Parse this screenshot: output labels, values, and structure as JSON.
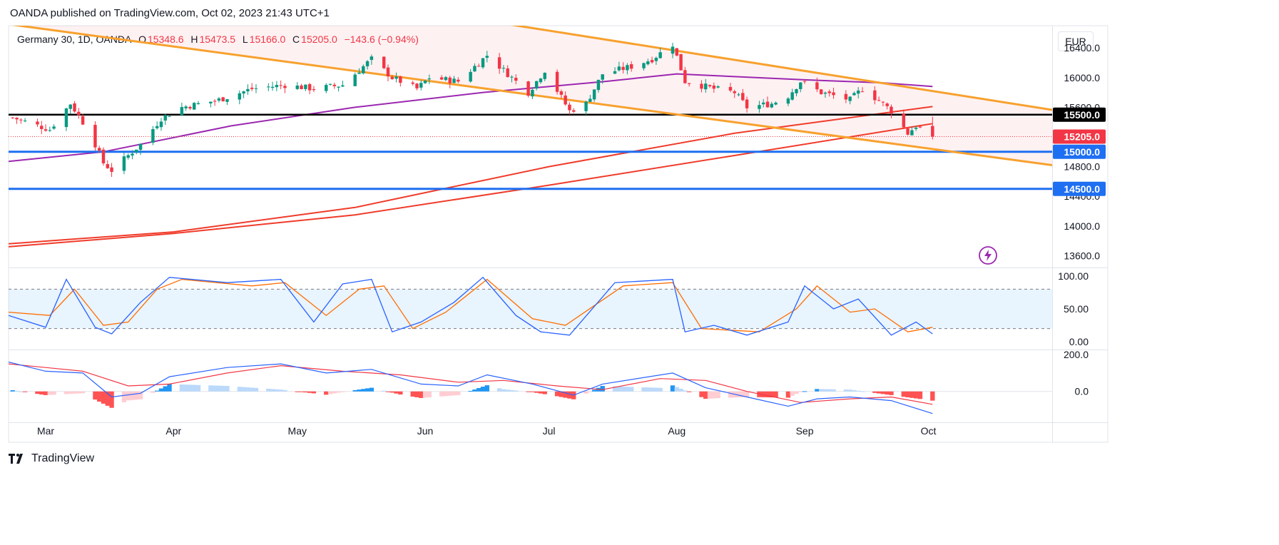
{
  "header": {
    "published": "OANDA published on TradingView.com, Oct 02, 2023 21:43 UTC+1"
  },
  "legend": {
    "symbol": "Germany 30, 1D, OANDA",
    "open_label": "O",
    "open": "15348.6",
    "high_label": "H",
    "high": "15473.5",
    "low_label": "L",
    "low": "15166.0",
    "close_label": "C",
    "close": "15205.0",
    "change": "−143.6 (−0.94%)"
  },
  "currency": "EUR",
  "price_axis": {
    "ticks": [
      "16400.0",
      "16000.0",
      "15600.0",
      "14800.0",
      "14400.0",
      "14000.0",
      "13600.0"
    ]
  },
  "levels": [
    {
      "name": "resistance",
      "label": "15500.0",
      "color": "#000000"
    },
    {
      "name": "last",
      "label": "15205.0",
      "color": "#f23645"
    },
    {
      "name": "support-1",
      "label": "15000.0",
      "color": "#1e6ff1"
    },
    {
      "name": "support-2",
      "label": "14500.0",
      "color": "#1e6ff1"
    }
  ],
  "stoch_axis": {
    "ticks": [
      "100.00",
      "50.00",
      "0.00"
    ]
  },
  "macd_axis": {
    "ticks": [
      "200.0",
      "0.0"
    ]
  },
  "time_axis": {
    "labels": [
      "Mar",
      "Apr",
      "May",
      "Jun",
      "Jul",
      "Aug",
      "Sep",
      "Oct"
    ]
  },
  "brand": {
    "name": "TradingView"
  },
  "colors": {
    "up": "#089981",
    "down": "#f23645",
    "channel": "#f7a12e",
    "ma_purple": "#9c27b0",
    "ma_red": "#f03b2a",
    "blue": "#1e6ff1"
  },
  "chart_data": {
    "type": "candlestick",
    "title": "Germany 30, 1D, OANDA",
    "y_range": [
      13450,
      16700
    ],
    "x_range": [
      "2023-02-20",
      "2023-10-31"
    ],
    "last_bar": {
      "open": 15348.6,
      "high": 15473.5,
      "low": 15166.0,
      "close": 15205.0,
      "change": -143.6,
      "change_pct": -0.94
    },
    "horizontal_levels": [
      15500.0,
      15000.0,
      14500.0
    ],
    "channel": {
      "upper": [
        [
          "2023-02-20",
          17780
        ],
        [
          "2023-10-31",
          15565
        ]
      ],
      "lower": [
        [
          "2023-02-20",
          16720
        ],
        [
          "2023-10-31",
          14820
        ]
      ]
    },
    "closes_anchor": [
      [
        "2023-02-21",
        15460
      ],
      [
        "2023-03-02",
        15300
      ],
      [
        "2023-03-07",
        15650
      ],
      [
        "2023-03-10",
        15400
      ],
      [
        "2023-03-13",
        15100
      ],
      [
        "2023-03-15",
        14850
      ],
      [
        "2023-03-17",
        14750
      ],
      [
        "2023-03-20",
        14900
      ],
      [
        "2023-03-24",
        15100
      ],
      [
        "2023-03-29",
        15450
      ],
      [
        "2023-04-03",
        15600
      ],
      [
        "2023-04-12",
        15700
      ],
      [
        "2023-04-20",
        15850
      ],
      [
        "2023-04-28",
        15900
      ],
      [
        "2023-05-05",
        15850
      ],
      [
        "2023-05-12",
        15900
      ],
      [
        "2023-05-19",
        16250
      ],
      [
        "2023-05-24",
        16000
      ],
      [
        "2023-05-30",
        15850
      ],
      [
        "2023-06-02",
        16000
      ],
      [
        "2023-06-09",
        15950
      ],
      [
        "2023-06-16",
        16300
      ],
      [
        "2023-06-22",
        16000
      ],
      [
        "2023-06-26",
        15800
      ],
      [
        "2023-06-30",
        16100
      ],
      [
        "2023-07-06",
        15550
      ],
      [
        "2023-07-10",
        15650
      ],
      [
        "2023-07-14",
        16050
      ],
      [
        "2023-07-21",
        16150
      ],
      [
        "2023-07-26",
        16250
      ],
      [
        "2023-07-31",
        16450
      ],
      [
        "2023-08-03",
        15950
      ],
      [
        "2023-08-10",
        15850
      ],
      [
        "2023-08-15",
        15800
      ],
      [
        "2023-08-18",
        15600
      ],
      [
        "2023-08-24",
        15650
      ],
      [
        "2023-08-28",
        15750
      ],
      [
        "2023-08-31",
        15950
      ],
      [
        "2023-09-05",
        15800
      ],
      [
        "2023-09-12",
        15700
      ],
      [
        "2023-09-15",
        15850
      ],
      [
        "2023-09-20",
        15650
      ],
      [
        "2023-09-22",
        15550
      ],
      [
        "2023-09-26",
        15250
      ],
      [
        "2023-09-28",
        15350
      ],
      [
        "2023-10-02",
        15205
      ]
    ],
    "ma_purple": [
      [
        "2023-02-20",
        14870
      ],
      [
        "2023-03-15",
        15000
      ],
      [
        "2023-04-15",
        15350
      ],
      [
        "2023-05-15",
        15600
      ],
      [
        "2023-06-15",
        15800
      ],
      [
        "2023-07-15",
        15950
      ],
      [
        "2023-08-01",
        16050
      ],
      [
        "2023-09-01",
        15970
      ],
      [
        "2023-09-20",
        15930
      ],
      [
        "2023-10-02",
        15880
      ]
    ],
    "ma_red_upper": [
      [
        "2023-02-20",
        13760
      ],
      [
        "2023-04-01",
        13920
      ],
      [
        "2023-05-15",
        14250
      ],
      [
        "2023-07-01",
        14800
      ],
      [
        "2023-08-15",
        15250
      ],
      [
        "2023-10-02",
        15610
      ]
    ],
    "ma_red_lower": [
      [
        "2023-02-20",
        13720
      ],
      [
        "2023-04-01",
        13900
      ],
      [
        "2023-05-15",
        14150
      ],
      [
        "2023-07-01",
        14550
      ],
      [
        "2023-08-15",
        14950
      ],
      [
        "2023-10-02",
        15380
      ]
    ],
    "stochastic": {
      "levels": {
        "upper": 80,
        "lower": 20
      },
      "y_range": [
        0,
        100
      ],
      "k": [
        [
          "2023-02-20",
          40
        ],
        [
          "2023-03-01",
          22
        ],
        [
          "2023-03-06",
          95
        ],
        [
          "2023-03-13",
          22
        ],
        [
          "2023-03-17",
          12
        ],
        [
          "2023-03-24",
          60
        ],
        [
          "2023-03-31",
          98
        ],
        [
          "2023-04-14",
          90
        ],
        [
          "2023-04-27",
          95
        ],
        [
          "2023-05-05",
          30
        ],
        [
          "2023-05-12",
          88
        ],
        [
          "2023-05-19",
          95
        ],
        [
          "2023-05-24",
          15
        ],
        [
          "2023-05-31",
          30
        ],
        [
          "2023-06-08",
          60
        ],
        [
          "2023-06-15",
          98
        ],
        [
          "2023-06-23",
          40
        ],
        [
          "2023-06-29",
          15
        ],
        [
          "2023-07-06",
          10
        ],
        [
          "2023-07-17",
          90
        ],
        [
          "2023-07-31",
          95
        ],
        [
          "2023-08-03",
          15
        ],
        [
          "2023-08-10",
          25
        ],
        [
          "2023-08-18",
          10
        ],
        [
          "2023-08-28",
          30
        ],
        [
          "2023-09-01",
          85
        ],
        [
          "2023-09-08",
          50
        ],
        [
          "2023-09-14",
          65
        ],
        [
          "2023-09-22",
          10
        ],
        [
          "2023-09-28",
          30
        ],
        [
          "2023-10-02",
          12
        ]
      ],
      "d": [
        [
          "2023-02-20",
          45
        ],
        [
          "2023-03-02",
          40
        ],
        [
          "2023-03-08",
          80
        ],
        [
          "2023-03-15",
          25
        ],
        [
          "2023-03-21",
          30
        ],
        [
          "2023-03-28",
          80
        ],
        [
          "2023-04-03",
          95
        ],
        [
          "2023-04-20",
          85
        ],
        [
          "2023-04-28",
          90
        ],
        [
          "2023-05-08",
          40
        ],
        [
          "2023-05-16",
          80
        ],
        [
          "2023-05-22",
          85
        ],
        [
          "2023-05-29",
          20
        ],
        [
          "2023-06-06",
          45
        ],
        [
          "2023-06-16",
          95
        ],
        [
          "2023-06-27",
          35
        ],
        [
          "2023-07-05",
          25
        ],
        [
          "2023-07-19",
          85
        ],
        [
          "2023-07-31",
          90
        ],
        [
          "2023-08-07",
          20
        ],
        [
          "2023-08-21",
          15
        ],
        [
          "2023-08-30",
          50
        ],
        [
          "2023-09-04",
          85
        ],
        [
          "2023-09-12",
          45
        ],
        [
          "2023-09-18",
          50
        ],
        [
          "2023-09-26",
          15
        ],
        [
          "2023-10-02",
          22
        ]
      ]
    },
    "macd": {
      "y_range": [
        -160,
        220
      ],
      "macd": [
        [
          "2023-02-20",
          160
        ],
        [
          "2023-03-01",
          110
        ],
        [
          "2023-03-10",
          100
        ],
        [
          "2023-03-17",
          -30
        ],
        [
          "2023-03-24",
          -10
        ],
        [
          "2023-03-31",
          80
        ],
        [
          "2023-04-14",
          130
        ],
        [
          "2023-04-27",
          150
        ],
        [
          "2023-05-08",
          100
        ],
        [
          "2023-05-19",
          120
        ],
        [
          "2023-05-31",
          40
        ],
        [
          "2023-06-09",
          30
        ],
        [
          "2023-06-16",
          90
        ],
        [
          "2023-06-27",
          40
        ],
        [
          "2023-07-07",
          -20
        ],
        [
          "2023-07-14",
          40
        ],
        [
          "2023-07-31",
          100
        ],
        [
          "2023-08-08",
          20
        ],
        [
          "2023-08-18",
          -30
        ],
        [
          "2023-08-28",
          -80
        ],
        [
          "2023-09-04",
          -40
        ],
        [
          "2023-09-12",
          -30
        ],
        [
          "2023-09-22",
          -50
        ],
        [
          "2023-10-02",
          -120
        ]
      ],
      "signal": [
        [
          "2023-02-20",
          150
        ],
        [
          "2023-03-01",
          130
        ],
        [
          "2023-03-10",
          110
        ],
        [
          "2023-03-21",
          30
        ],
        [
          "2023-03-31",
          40
        ],
        [
          "2023-04-14",
          100
        ],
        [
          "2023-04-27",
          140
        ],
        [
          "2023-05-12",
          110
        ],
        [
          "2023-05-26",
          90
        ],
        [
          "2023-06-09",
          50
        ],
        [
          "2023-06-20",
          60
        ],
        [
          "2023-07-03",
          30
        ],
        [
          "2023-07-14",
          10
        ],
        [
          "2023-07-28",
          70
        ],
        [
          "2023-08-08",
          60
        ],
        [
          "2023-08-18",
          0
        ],
        [
          "2023-08-31",
          -60
        ],
        [
          "2023-09-12",
          -40
        ],
        [
          "2023-09-22",
          -30
        ],
        [
          "2023-10-02",
          -70
        ]
      ],
      "histogram_note": "MACD minus signal"
    }
  }
}
